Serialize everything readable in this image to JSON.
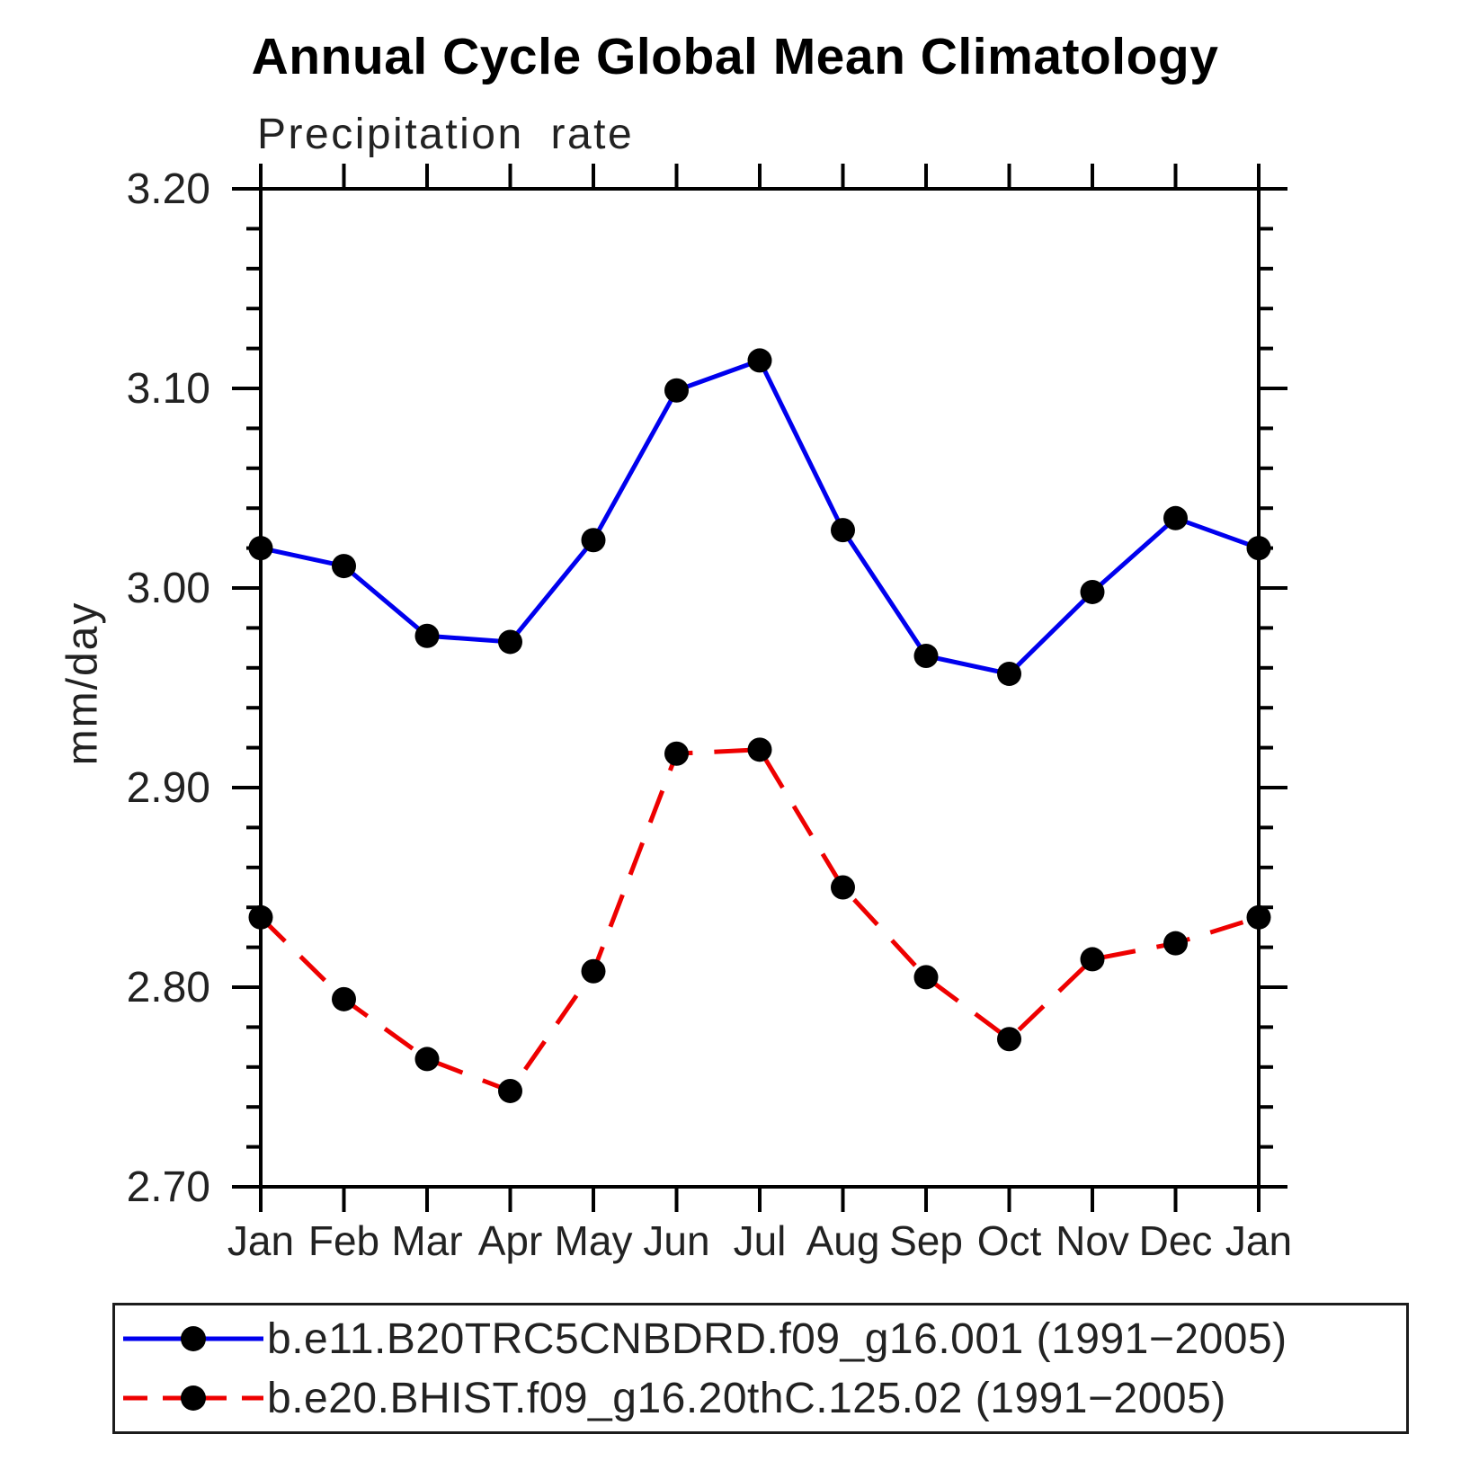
{
  "chart_data": {
    "type": "line",
    "title": "Annual Cycle Global Mean Climatology",
    "subtitle": "Precipitation rate",
    "ylabel": "mm/day",
    "xlabel": "",
    "x_categories": [
      "Jan",
      "Feb",
      "Mar",
      "Apr",
      "May",
      "Jun",
      "Jul",
      "Aug",
      "Sep",
      "Oct",
      "Nov",
      "Dec",
      "Jan"
    ],
    "ylim": [
      2.7,
      3.2
    ],
    "ytick_major_step": 0.1,
    "ytick_minor_step": 0.02,
    "ytick_labels": [
      "2.70",
      "2.80",
      "2.90",
      "3.00",
      "3.10",
      "3.20"
    ],
    "grid": false,
    "legend_position": "bottom",
    "axis_color": "#000000",
    "tick_label_color": "#222222",
    "marker_color": "#000000",
    "series": [
      {
        "name": "b.e11.B20TRC5CNBDRD.f09_g16.001 (1991−2005)",
        "color": "#0000ee",
        "style": "solid",
        "marker": "circle",
        "values": [
          3.02,
          3.011,
          2.976,
          2.973,
          3.024,
          3.099,
          3.114,
          3.029,
          2.966,
          2.957,
          2.998,
          3.035,
          3.02
        ]
      },
      {
        "name": "b.e20.BHIST.f09_g16.20thC.125.02 (1991−2005)",
        "color": "#ee0000",
        "style": "dashed",
        "marker": "circle",
        "values": [
          2.835,
          2.794,
          2.764,
          2.748,
          2.808,
          2.917,
          2.919,
          2.85,
          2.805,
          2.774,
          2.814,
          2.822,
          2.835
        ]
      }
    ]
  }
}
